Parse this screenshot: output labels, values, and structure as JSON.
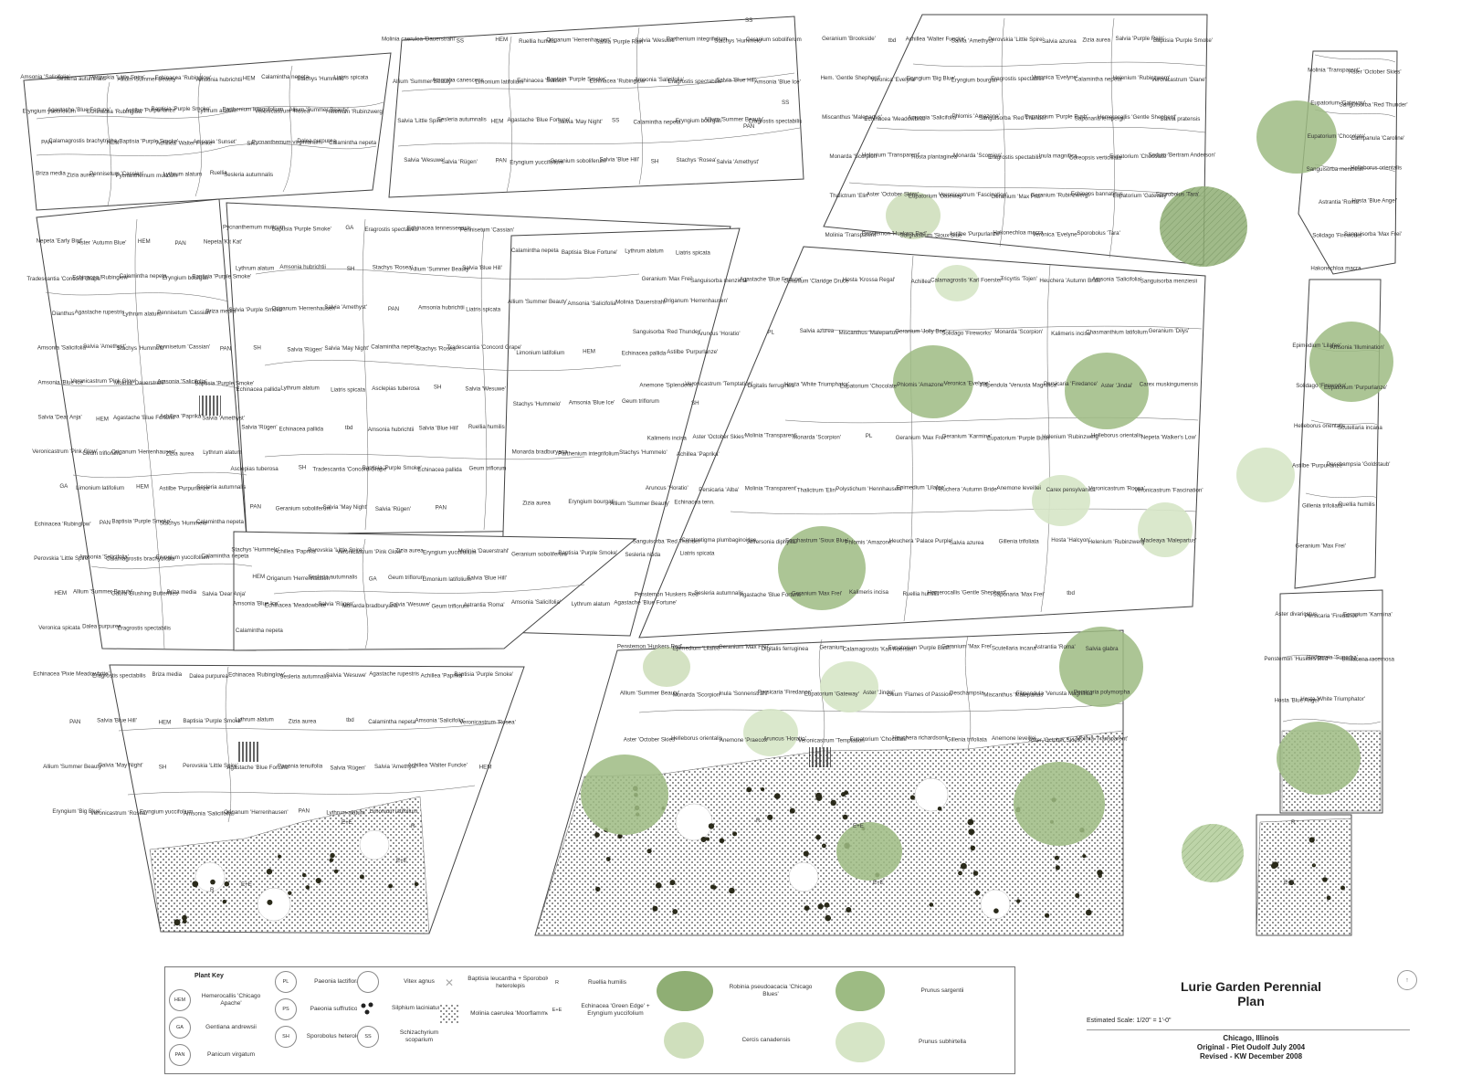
{
  "title_block": {
    "title_line1": "Lurie Garden Perennial",
    "title_line2": "Plan",
    "scale": "Estimated Scale: 1/20\" = 1'-0\"",
    "location": "Chicago, Illinois",
    "original": "Original - Piet Oudolf July 2004",
    "revised": "Revised - KW December 2008"
  },
  "plant_key": {
    "heading": "Plant Key",
    "items": [
      {
        "code": "HEM",
        "name": "Hemerocallis 'Chicago Apache'"
      },
      {
        "code": "GA",
        "name": "Gentiana andrewsii"
      },
      {
        "code": "PAN",
        "name": "Panicum virgatum"
      },
      {
        "code": "PL",
        "name": "Paeonia lactiflora"
      },
      {
        "code": "PS",
        "name": "Paeonia suffruticosa"
      },
      {
        "code": "SH",
        "name": "Sporobolus heterolepis"
      },
      {
        "code": "",
        "name": "Vitex agnus"
      },
      {
        "code": "",
        "name": "Silphium laciniatum"
      },
      {
        "code": "SS",
        "name": "Schizachyrium scoparium"
      },
      {
        "code": "",
        "name": "Baptisia leucantha + Sporobolus heterolepis"
      },
      {
        "code": "",
        "name": "Molinia caerulea 'Moorflamme'"
      },
      {
        "code": "R",
        "name": "Ruellia humilis"
      },
      {
        "code": "E+E",
        "name": "Echinacea 'Green Edge' + Eryngium yuccifolium"
      }
    ],
    "trees": [
      {
        "name": "Robinia pseudoacacia 'Chicago Blues'",
        "color": "#8fae74"
      },
      {
        "name": "Cercis canadensis",
        "color": "#cfdfbc"
      },
      {
        "name": "Prunus sargentii",
        "color": "#9dbb83"
      },
      {
        "name": "Prunus subhirtella",
        "color": "#d6e5c6"
      }
    ]
  },
  "beds": [
    {
      "labels": [
        "Amsonia 'Salicifolia'",
        "Sesleria autumnalis",
        "Perovskia 'Little Spire'",
        "Allium 'Summer Beauty'",
        "Echinacea 'Rubinglow'",
        "Amsonia hubrichtii",
        "HEM",
        "Calamintha nepeta",
        "Stachys 'Hummelo'",
        "Liatris spicata",
        "Eryngium yuccifolium",
        "Agastache 'Blue Fortune'",
        "Echinacea 'Rubinglow'",
        "Astilbe 'Purpurlanze'",
        "Baptisia 'Purple Smoke'",
        "Lythrum alatum",
        "Parthenium integrifolium",
        "Veronicastrum 'Rosea'",
        "Allium 'Summer Beauty'",
        "Helenium 'Rubinzwerg'",
        "PAN",
        "Calamagrostis brachytricha",
        "HEM",
        "Baptisia 'Purple Smoke'",
        "Achillea 'Walter Funke'",
        "Amsonia 'Sunset'",
        "SH",
        "Pycnanthemum virginianum",
        "Dalea purpurea",
        "Calamintha nepeta",
        "Briza media",
        "Zizia aurea",
        "Pennisetum 'Cassian'",
        "Pycnanthemum muticum",
        "Lythrum alatum",
        "Ruellia",
        "Sesleria autumnalis"
      ]
    },
    {
      "labels": [
        "Molinia caerulea 'Dauerstrahl'",
        "SS",
        "HEM",
        "Ruellia humilis",
        "Origanum 'Herrenhausen'",
        "Salvia 'Purple Rain'",
        "Salvia 'Wesuwe'",
        "Parthenium integrifolium",
        "Stachys 'Hummelo'",
        "Geranium soboliferum",
        "Allium 'Summer Beauty'",
        "Amorpha canescens",
        "Limonium latifolium",
        "Echinacea 'Sunset'",
        "Baptisia 'Purple Smoke'",
        "Echinacea 'Rubinglow'",
        "Amsonia 'Salicifolia'",
        "Eragrostis spectabilis",
        "Salvia 'Blue Hill'",
        "Amsonia 'Blue Ice'",
        "Salvia 'Little Spire'",
        "Sesleria autumnalis",
        "HEM",
        "Agastache 'Blue Fortune'",
        "Salvia 'May Night'",
        "SS",
        "Calamintha nepeta",
        "Eryngium bourgati",
        "Allium 'Summer Beauty'",
        "Eragrostis spectabilis",
        "Salvia 'Wesuwe'",
        "Salvia 'Rügen'",
        "PAN",
        "Eryngium yuccifolium",
        "Geranium soboliferum",
        "Salvia 'Blue Hill'",
        "SH",
        "Stachys 'Rosea'",
        "Salvia 'Amethyst'"
      ]
    },
    {
      "labels": [
        "Geranium 'Brookside'",
        "tbd",
        "Achillea 'Walter Funcke'",
        "Salvia 'Amethyst'",
        "Perovskia 'Little Spire'",
        "Salvia azurea",
        "Zizia aurea",
        "Salvia 'Purple Rain'",
        "Baptisia 'Purple Smoke'",
        "Hem. 'Gentle Shepherd'",
        "Veronica 'Evelyne'",
        "Eryngium 'Big Blue'",
        "Eryngium bourgati",
        "Eragrostis spectabilis",
        "Veronica 'Evelyne'",
        "Calamintha nepeta",
        "Helenium 'Rubinzwerg'",
        "Veronicastrum 'Diane'",
        "Miscanthus 'Malepartus'",
        "Echinacea 'Meadowbrite'",
        "Amsonia 'Salicifolia'",
        "Phlomis 'Amazone'",
        "Sanguisorba 'Red Thunder'",
        "Eupatorium 'Purple Bush'",
        "Saponaria lempergii",
        "Hemerocallis 'Gentle Shepherd'",
        "Salvia pratensis",
        "Monarda 'Scorpion'",
        "Helenium 'Transparent'",
        "Hosta plantaginea",
        "Monarda 'Scorpion'",
        "Eragrostis spectabilis",
        "Inula magnifica",
        "Coreopsis verticillata",
        "Eupatorium 'Chocolate'",
        "Sedum 'Bertram Anderson'",
        "Thalictrum 'Elin'",
        "Aster 'October Skies'",
        "Eupatorium 'Gateway'",
        "Veronicastrum 'Fascination'",
        "Geranium 'Max Frei'",
        "Geranium 'Rubinzwerg'",
        "Echinops bannaticus",
        "Eupatorium 'Gateway'",
        "Sporobolus 'Tara'",
        "Molinia 'Transparent'",
        "Penstemon 'Huskers Red'",
        "Sorghastrum 'Sioux Blue'",
        "Astilbe 'Purpurlanze'",
        "Hakonechloa macra",
        "Veronica 'Evelyne'",
        "Sporobolus 'Tara'"
      ]
    },
    {
      "labels": [
        "Molinia 'Transparent'",
        "Aster 'October Skies'",
        "Eupatorium 'Gateway'",
        "Sanguisorba 'Red Thunder'",
        "Eupatorium 'Chocolate'",
        "Campanula 'Caroline'",
        "Sanguisorba menziesii",
        "Helleborus orientalis",
        "Astrantia 'Roma'",
        "Hosta 'Blue Angel'",
        "Solidago 'Fireworks'",
        "Sanguisorba 'Max Frei'",
        "Hakonechloa macra"
      ]
    },
    {
      "labels": [
        "Nepeta 'Early Bird'",
        "Aster 'Autumn Blue'",
        "HEM",
        "PAN",
        "Nepeta 'Kit Kat'",
        "Tradescantia 'Concord Grape'",
        "Echinacea 'Rubinglow'",
        "Calamintha nepeta",
        "Eryngium bourgati",
        "Baptisia 'Purple Smoke'",
        "Dianthus",
        "Agastache rupestris",
        "Lythrum alatum",
        "Pennisetum 'Cassian'",
        "Briza media",
        "Amsonia 'Salicifolia'",
        "Salvia 'Amethyst'",
        "Stachys 'Hummelo'",
        "Pennisetum 'Cassian'",
        "PAN",
        "Amsonia 'Blue Ice'",
        "Veronicastrum 'Pink Glow'",
        "Molinia 'Dauerstrahl'",
        "Amsonia 'Salicifolia'",
        "Baptisia 'Purple Smoke'",
        "Salvia 'Dear Anja'",
        "HEM",
        "Agastache 'Blue Fortune'",
        "Achillea 'Paprika'",
        "Salvia 'Amethyst'",
        "Veronicastrum 'Pink Glow'",
        "Geum triflorum",
        "Origanum 'Herrenhausen'",
        "Zizia aurea",
        "Lythrum alatum",
        "GA",
        "Limonium latifolium",
        "HEM",
        "Astilbe 'Purpurlanze'",
        "Sesleria autumnalis",
        "Echinacea 'Rubinglow'",
        "PAN",
        "Baptisia 'Purple Smoke'",
        "Stachys 'Hummelo'",
        "Calamintha nepeta",
        "Perovskia 'Little Spire'",
        "Amsonia 'Salicifolia'",
        "Calamagrostis brachytricha",
        "Eryngium yuccifolium",
        "Calamintha nepeta",
        "HEM",
        "Allium 'Summer Beauty'",
        "Gaura 'Blushing Butterflies'",
        "Briza media",
        "Salvia 'Dear Anja'",
        "Veronica spicata",
        "Dalea purpurea",
        "Eragrostis spectabilis"
      ]
    },
    {
      "labels": [
        "Pycnanthemum muticum",
        "Baptisia 'Purple Smoke'",
        "GA",
        "Eragrostis spectabilis",
        "Echinacea tennesseensis",
        "Pennisetum 'Cassian'",
        "Lythrum alatum",
        "Amsonia hubrichtii",
        "SH",
        "Stachys 'Rosea'",
        "Allium 'Summer Beauty'",
        "Salvia 'Blue Hill'",
        "Salvia 'Purple Smoke'",
        "Origanum 'Herrenhausen'",
        "Salvia 'Amethyst'",
        "PAN",
        "Amsonia hubrichtii",
        "Liatris spicata",
        "SH",
        "Salvia 'Rügen'",
        "Salvia 'May Night'",
        "Calamintha nepeta",
        "Stachys 'Rosea'",
        "Tradescantia 'Concord Grape'",
        "Echinacea pallida",
        "Lythrum alatum",
        "Liatris spicata",
        "Asclepias tuberosa",
        "SH",
        "Salvia 'Wesuwe'",
        "Salvia 'Rügen'",
        "Echinacea pallida",
        "tbd",
        "Amsonia hubrichtii",
        "Salvia 'Blue Hill'",
        "Ruellia humilis",
        "Asclepias tuberosa",
        "SH",
        "Tradescantia 'Concord Grape'",
        "Baptisia 'Purple Smoke'",
        "Echinacea pallida",
        "Geum triflorum",
        "PAN",
        "Geranium soboliferum",
        "Salvia 'May Night'",
        "Salvia 'Rügen'",
        "PAN"
      ]
    },
    {
      "labels": [
        "Calamintha nepeta",
        "Baptisia 'Blue Fortune'",
        "Lythrum alatum",
        "Liatris spicata",
        "Allium 'Summer Beauty'",
        "Amsonia 'Salicifolia'",
        "Molinia 'Dauerstrahl'",
        "Origanum 'Herrenhausen'",
        "Limonium latifolium",
        "HEM",
        "Echinacea pallida",
        "Astilbe 'Purpurlanze'",
        "Stachys 'Hummelo'",
        "Amsonia 'Blue Ice'",
        "Geum triflorum",
        "SH",
        "Monarda bradburyana",
        "Parthenium integrifolium",
        "Stachys 'Hummelo'",
        "Achillea 'Paprika'",
        "Zizia aurea",
        "Eryngium bourgati",
        "Allium 'Summer Beauty'",
        "Echinacea tenn.",
        "Geranium soboliferum",
        "Baptisia 'Purple Smoke'",
        "Sesleria nitida",
        "Liatris spicata",
        "Amsonia 'Salicifolia'",
        "Lythrum alatum",
        "Agastache 'Blue Fortune'"
      ]
    },
    {
      "labels": [
        "Stachys 'Hummelo'",
        "Achillea 'Paprika'",
        "Perovskia 'Little Spire'",
        "Veronicastrum 'Pink Glow'",
        "Zizia aurea",
        "Eryngium yuccifolium",
        "Molinia 'Dauerstrahl'",
        "HEM",
        "Origanum 'Herrenhausen'",
        "Sesleria autumnalis",
        "GA",
        "Geum triflorum",
        "Limonium latifolium",
        "Salvia 'Blue Hill'",
        "Amsonia 'Blue Ice'",
        "Echinacea 'Meadowbrite'",
        "Salvia 'Rügen'",
        "Monarda bradburyana",
        "Salvia 'Wesuwe'",
        "Geum triflorum",
        "Astrantia 'Roma'",
        "Calamintha nepeta"
      ]
    },
    {
      "labels": [
        "Geranium 'Max Frei'",
        "Sanguisorba menziesii",
        "Agastache 'Blue Fortune'",
        "Geranium 'Claridge Druce'",
        "Hosta 'Krossa Regal'",
        "Achillea",
        "Calamagrostis 'Karl Foerster'",
        "Tricyrtis 'Tojen'",
        "Heuchera 'Autumn Bride'",
        "Amsonia 'Salicifolia'",
        "Sanguisorba menziesii",
        "Sanguisorba 'Red Thunder'",
        "Aruncus 'Horatio'",
        "PL",
        "Salvia azurea",
        "Miscanthus 'Malepartus'",
        "Geranium 'Jolly Bee'",
        "Solidago 'Fireworks'",
        "Monarda 'Scorpion'",
        "Kalimeris incisa",
        "Chasmanthium latifolium",
        "Geranium 'Dilys'",
        "Anemone 'Splendens'",
        "Veronicastrum 'Temptation'",
        "Digitalis ferruginea",
        "Hosta 'White Triumphator'",
        "Eupatorium 'Chocolate'",
        "Phlomis 'Amazone'",
        "Veronica 'Evelyne'",
        "Filipendula 'Venusta Magnifica'",
        "Persicaria 'Firedance'",
        "Aster 'Jindai'",
        "Carex muskingumensis",
        "Kalimeris incisa",
        "Aster 'October Skies'",
        "Molinia 'Transparent'",
        "Monarda 'Scorpion'",
        "PL",
        "Geranium 'Max Frei'",
        "Geranium 'Karmina'",
        "Eupatorium 'Purple Bush'",
        "Helenium 'Rubinzwerg'",
        "Helleborus orientalis",
        "Nepeta 'Walker's Low'",
        "Aruncus 'Horatio'",
        "Persicaria 'Alba'",
        "Molinia 'Transparent'",
        "Thalictrum 'Elin'",
        "Polystichum 'Hennhausen'",
        "Epimedium 'Lilafee'",
        "Heuchera 'Autumn Bride'",
        "Anemone leveillei",
        "Carex pensylvanica",
        "Veronicastrum 'Rosea'",
        "Veronicastrum 'Fascination'",
        "Sanguisorba 'Red Thunder'",
        "Ceratostigma plumbaginoides",
        "Jeffersonia diphylla",
        "Sorghastrum 'Sioux Blue'",
        "Phlomis 'Amazone'",
        "Heuchera 'Palace Purple'",
        "Salvia azurea",
        "Gillenia trifoliata",
        "Hosta 'Halcyon'",
        "Helenium 'Rubinzwerg'",
        "Macleaya 'Malepartus'",
        "Penstemon 'Huskers Red'",
        "Sesleria autumnalis",
        "Agastache 'Blue Fortune'",
        "Geranium 'Max Frei'",
        "Kalimeris incisa",
        "Ruellia humilis",
        "Hemerocallis 'Gentle Shepherd'",
        "Saponaria 'Max Frei'",
        "tbd"
      ]
    },
    {
      "labels": [
        "Epimedium 'Lilafee'",
        "Amsonia 'Illumination'",
        "Solidago 'Fireworks'",
        "Eupatorium 'Purpurlanze'",
        "Helleborus orientalis",
        "Scutellaria incana",
        "Astilbe 'Purpurlanze'",
        "Deschampsia 'Goldstaub'",
        "Gillenia trifoliata",
        "Ruellia humilis",
        "Geranium 'Max Frei'"
      ]
    },
    {
      "labels": [
        "Penstemon 'Huskers Red'",
        "Epimedium 'Lilafee'",
        "Geranium 'Max Frei'",
        "Digitalis ferruginea",
        "Geranium",
        "Calamagrostis 'Karl Foerster'",
        "Eupatorium 'Purple Bush'",
        "Geranium 'Max Frei'",
        "Scutellaria incana",
        "Astrantia 'Roma'",
        "Salvia glabra",
        "Allium 'Summer Beauty'",
        "Monarda 'Scorpion'",
        "Inula 'Sonnenstrahl'",
        "Persicaria 'Firedance'",
        "Eupatorium 'Gateway'",
        "Aster 'Jindai'",
        "Geum 'Flames of Passion'",
        "Deschampsia",
        "Miscanthus 'Malepartus'",
        "Filipendula 'Venusta Magnifica'",
        "Persicaria polymorpha",
        "Aster 'October Skies'",
        "Helleborus orientalis",
        "Anemone 'Praecox'",
        "Aruncus 'Horatio'",
        "Veronicastrum 'Temptation'",
        "Eupatorium 'Chocolate'",
        "Heuchera richardsonii",
        "Gillenia trifoliata",
        "Anemone leveillei",
        "Aster 'October Skies'",
        "Molinia 'Transparent'"
      ]
    },
    {
      "labels": [
        "Aster divaricatus",
        "Persicaria 'Firedance'",
        "Geranium 'Karmina'",
        "Penstemon 'Huskers Red'",
        "Rodgersia 'Superba'",
        "Smilacena racemosa",
        "Hosta 'Blue Angel'",
        "Hosta 'White Triumphator'"
      ]
    },
    {
      "labels": [
        "Echinacea 'Pixie Meadowbrite'",
        "Eragrostis spectabilis",
        "Briza media",
        "Dalea purpurea",
        "Echinacea 'Rubinglow'",
        "Sesleria autumnalis",
        "Salvia 'Wesuwe'",
        "Agastache rupestris",
        "Achillea 'Paprika'",
        "Baptisia 'Purple Smoke'",
        "PAN",
        "Salvia 'Blue Hill'",
        "HEM",
        "Baptisia 'Purple Smoke'",
        "Lythrum alatum",
        "Zizia aurea",
        "tbd",
        "Calamintha nepeta",
        "Amsonia 'Salicifolia'",
        "Veronicastrum 'Rosea'",
        "Allium 'Summer Beauty'",
        "Salvia 'May Night'",
        "SH",
        "Perovskia 'Little Spire'",
        "Agastache 'Blue Fortune'",
        "Paeonia tenuifolia",
        "Salvia 'Rügen'",
        "Salvia 'Amethyst'",
        "Achillea 'Walter Funcke'",
        "HEM",
        "Eryngium 'Big Blue'",
        "Veronicastrum 'Rosea'",
        "Eryngium yuccifolium",
        "Amsonia 'Salicifolia'",
        "Origanum 'Herrenhausen'",
        "PAN",
        "Lythrum alatum",
        "Limonium latifolium"
      ]
    }
  ],
  "plan_codes": [
    "SS",
    "SS",
    "PAN",
    "R",
    "E+E",
    "R",
    "E+E",
    "E+E",
    "R",
    "E+E",
    "E+E",
    "R",
    "E+E"
  ]
}
